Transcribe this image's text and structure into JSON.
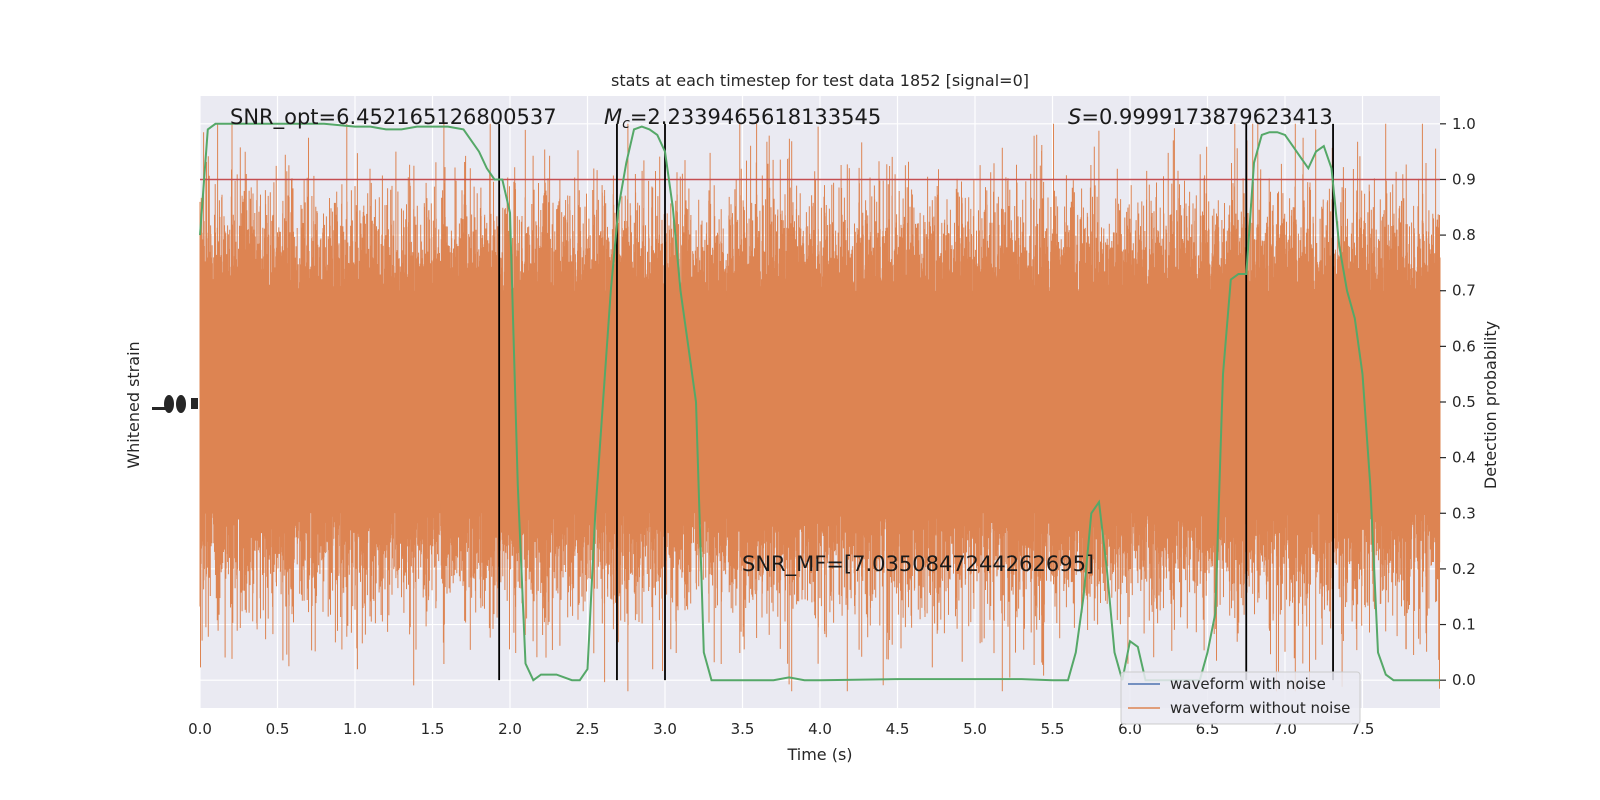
{
  "chart_data": {
    "type": "line",
    "title": "stats at each timestep for test data 1852 [signal=0]",
    "xlabel": "Time (s)",
    "ylabel_left": "Whitened strain",
    "ylabel_right": "Detection probability",
    "xlim": [
      0,
      8
    ],
    "ylim_right": [
      -0.05,
      1.05
    ],
    "x_ticks": [
      "0.0",
      "0.5",
      "1.0",
      "1.5",
      "2.0",
      "2.5",
      "3.0",
      "3.5",
      "4.0",
      "4.5",
      "5.0",
      "5.5",
      "6.0",
      "6.5",
      "7.0",
      "7.5"
    ],
    "y_ticks_right": [
      "0.0",
      "0.1",
      "0.2",
      "0.3",
      "0.4",
      "0.5",
      "0.6",
      "0.7",
      "0.8",
      "0.9",
      "1.0"
    ],
    "grid": true,
    "legend_position": "lower-right",
    "annotations": {
      "snr_opt": "SNR_opt=6.452165126800537",
      "mc_symbol": "M",
      "mc_sub": "c",
      "mc_value": "=2.2339465618133545",
      "s_symbol": "S",
      "s_value": "=0.9999173879623413",
      "snr_mf": "SNR_MF=[7.0350847244262695]"
    },
    "threshold": 0.9,
    "vertical_lines": [
      1.93,
      2.69,
      3.0,
      6.75,
      7.31
    ],
    "series": [
      {
        "name": "waveform with noise",
        "color": "#4c72b0"
      },
      {
        "name": "waveform without noise",
        "color": "#dd8452"
      },
      {
        "color": "#55a868",
        "x": [
          0.0,
          0.05,
          0.1,
          0.2,
          0.4,
          0.6,
          0.8,
          1.0,
          1.1,
          1.2,
          1.3,
          1.4,
          1.5,
          1.6,
          1.7,
          1.8,
          1.85,
          1.9,
          1.95,
          2.0,
          2.05,
          2.1,
          2.15,
          2.2,
          2.3,
          2.4,
          2.45,
          2.5,
          2.55,
          2.6,
          2.65,
          2.7,
          2.75,
          2.8,
          2.85,
          2.9,
          2.95,
          3.0,
          3.05,
          3.1,
          3.15,
          3.2,
          3.25,
          3.3,
          3.35,
          3.4,
          3.5,
          3.7,
          3.8,
          3.9,
          4.0,
          4.5,
          5.0,
          5.3,
          5.5,
          5.6,
          5.65,
          5.7,
          5.75,
          5.8,
          5.85,
          5.9,
          5.95,
          6.0,
          6.05,
          6.1,
          6.15,
          6.2,
          6.3,
          6.4,
          6.45,
          6.5,
          6.55,
          6.6,
          6.65,
          6.7,
          6.75,
          6.8,
          6.85,
          6.9,
          6.95,
          7.0,
          7.05,
          7.1,
          7.15,
          7.2,
          7.25,
          7.3,
          7.35,
          7.4,
          7.45,
          7.5,
          7.55,
          7.6,
          7.65,
          7.7,
          7.75,
          7.8,
          7.9,
          8.0
        ],
        "y": [
          0.8,
          0.99,
          1.0,
          1.0,
          1.0,
          1.0,
          1.0,
          0.995,
          0.995,
          0.99,
          0.99,
          0.995,
          0.995,
          0.995,
          0.99,
          0.95,
          0.92,
          0.9,
          0.9,
          0.84,
          0.35,
          0.03,
          0.0,
          0.01,
          0.01,
          0.0,
          0.0,
          0.02,
          0.3,
          0.5,
          0.7,
          0.85,
          0.93,
          0.99,
          0.995,
          0.99,
          0.98,
          0.95,
          0.85,
          0.7,
          0.6,
          0.5,
          0.05,
          0.0,
          0.0,
          0.0,
          0.0,
          0.0,
          0.005,
          0.0,
          0.0,
          0.002,
          0.002,
          0.002,
          0.0,
          0.0,
          0.05,
          0.15,
          0.3,
          0.32,
          0.2,
          0.05,
          0.0,
          0.07,
          0.06,
          0.0,
          0.0,
          0.0,
          0.0,
          0.0,
          0.0,
          0.05,
          0.12,
          0.55,
          0.72,
          0.73,
          0.73,
          0.93,
          0.98,
          0.985,
          0.985,
          0.98,
          0.96,
          0.94,
          0.92,
          0.95,
          0.96,
          0.92,
          0.78,
          0.7,
          0.65,
          0.55,
          0.35,
          0.05,
          0.01,
          0.0,
          0.0,
          0.0,
          0.0,
          0.0
        ]
      }
    ]
  }
}
